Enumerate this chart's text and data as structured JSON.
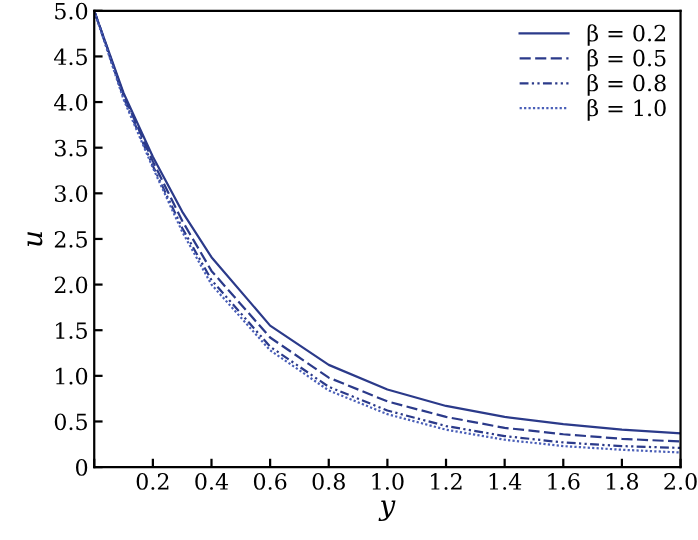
{
  "chart_data": {
    "type": "line",
    "xlabel": "y",
    "ylabel": "u",
    "x": [
      0,
      0.1,
      0.2,
      0.3,
      0.4,
      0.6,
      0.8,
      1.0,
      1.2,
      1.4,
      1.6,
      1.8,
      2.0
    ],
    "series": [
      {
        "name": "β = 0.2",
        "color": "#2b3a8a",
        "line_style": "solid",
        "values": [
          5.0,
          4.1,
          3.4,
          2.8,
          2.3,
          1.55,
          1.12,
          0.85,
          0.67,
          0.55,
          0.47,
          0.41,
          0.37
        ]
      },
      {
        "name": "β = 0.5",
        "color": "#2b3a8a",
        "line_style": "dashed",
        "values": [
          5.0,
          4.08,
          3.35,
          2.7,
          2.15,
          1.42,
          0.98,
          0.72,
          0.55,
          0.43,
          0.36,
          0.31,
          0.28
        ]
      },
      {
        "name": "β = 0.8",
        "color": "#2b3a8a",
        "line_style": "dashdot",
        "values": [
          5.0,
          4.05,
          3.3,
          2.62,
          2.05,
          1.32,
          0.88,
          0.62,
          0.45,
          0.34,
          0.27,
          0.23,
          0.21
        ]
      },
      {
        "name": "β = 1.0",
        "color": "#4a5fb8",
        "line_style": "dotted",
        "values": [
          5.0,
          4.03,
          3.28,
          2.58,
          2.0,
          1.28,
          0.84,
          0.58,
          0.41,
          0.3,
          0.23,
          0.19,
          0.16
        ]
      }
    ],
    "xlim": [
      0,
      2.0
    ],
    "ylim": [
      0,
      5.0
    ],
    "xticks": [
      {
        "value": 0,
        "label": null
      },
      {
        "value": 0.2,
        "label": "0.2"
      },
      {
        "value": 0.4,
        "label": "0.4"
      },
      {
        "value": 0.6,
        "label": "0.6"
      },
      {
        "value": 0.8,
        "label": "0.8"
      },
      {
        "value": 1.0,
        "label": "1.0"
      },
      {
        "value": 1.2,
        "label": "1.2"
      },
      {
        "value": 1.4,
        "label": "1.4"
      },
      {
        "value": 1.6,
        "label": "1.6"
      },
      {
        "value": 1.8,
        "label": "1.8"
      },
      {
        "value": 2.0,
        "label": "2.0"
      }
    ],
    "yticks": [
      0,
      {
        "value": 0.5,
        "label": "0.5"
      },
      {
        "value": 1.0,
        "label": "1.0"
      },
      {
        "value": 1.5,
        "label": "1.5"
      },
      {
        "value": 2.0,
        "label": "2.0"
      },
      {
        "value": 2.5,
        "label": "2.5"
      },
      {
        "value": 3.0,
        "label": "3.0"
      },
      {
        "value": 3.5,
        "label": "3.5"
      },
      {
        "value": 4.0,
        "label": "4.0"
      },
      {
        "value": 4.5,
        "label": "4.5"
      },
      {
        "value": 5.0,
        "label": "5.0"
      }
    ],
    "legend": "top right",
    "grid": false
  }
}
